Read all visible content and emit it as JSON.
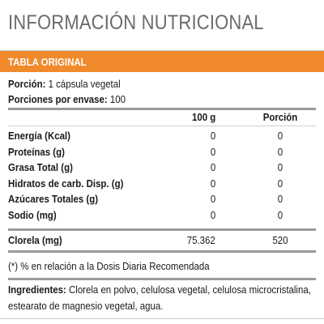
{
  "title": "INFORMACIÓN NUTRICIONAL",
  "table_label": "TABLA ORIGINAL",
  "serving": {
    "label": "Porción:",
    "value": "1 cápsula vegetal"
  },
  "servings_per": {
    "label": "Porciones por envase:",
    "value": "100"
  },
  "columns": {
    "per100": "100 g",
    "portion": "Porción"
  },
  "rows": [
    {
      "name": "Energía (Kcal)",
      "per100": "0",
      "portion": "0"
    },
    {
      "name": "Proteínas (g)",
      "per100": "0",
      "portion": "0"
    },
    {
      "name": "Grasa Total (g)",
      "per100": "0",
      "portion": "0"
    },
    {
      "name": "Hidratos de carb. Disp. (g)",
      "per100": "0",
      "portion": "0"
    },
    {
      "name": "Azúcares Totales (g)",
      "per100": "0",
      "portion": "0"
    },
    {
      "name": "Sodio (mg)",
      "per100": "0",
      "portion": "0"
    }
  ],
  "extra_row": {
    "name": "Clorela (mg)",
    "per100": "75.362",
    "portion": "520"
  },
  "footnote": "(*) % en relación a la Dosis Diaria Recomendada",
  "ingredients": {
    "label": "Ingredientes:",
    "line1": "Clorela en polvo, celulosa vegetal, celulosa microcristalina,",
    "line2": "estearato de magnesio vegetal, agua."
  }
}
